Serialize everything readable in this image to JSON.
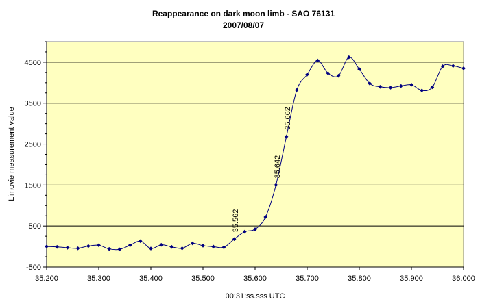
{
  "chart_data": {
    "type": "line",
    "title": "Reappearance on dark moon limb - SAO 76131",
    "subtitle": "2007/08/07",
    "xlabel": "00:31:ss.sss UTC",
    "ylabel": "Limovie measurement value",
    "xlim": [
      35.2,
      36.0
    ],
    "ylim": [
      -500,
      5000
    ],
    "x_ticks": [
      "35.200",
      "35.300",
      "35.400",
      "35.500",
      "35.600",
      "35.700",
      "35.800",
      "35.900",
      "36.000"
    ],
    "y_ticks": [
      "-500",
      "500",
      "1500",
      "2500",
      "3500",
      "4500"
    ],
    "gridlines_at": [
      500,
      1500,
      2500,
      3500,
      4500
    ],
    "grid": true,
    "plot_background": "#ffffc0",
    "series_color": "#000080",
    "series": [
      {
        "points": [
          [
            35.2,
            0
          ],
          [
            35.22,
            -10
          ],
          [
            35.24,
            -30
          ],
          [
            35.26,
            -45
          ],
          [
            35.28,
            10
          ],
          [
            35.3,
            30
          ],
          [
            35.32,
            -60
          ],
          [
            35.34,
            -70
          ],
          [
            35.36,
            30
          ],
          [
            35.38,
            130
          ],
          [
            35.4,
            -50
          ],
          [
            35.42,
            40
          ],
          [
            35.44,
            -10
          ],
          [
            35.46,
            -45
          ],
          [
            35.48,
            75
          ],
          [
            35.5,
            20
          ],
          [
            35.52,
            -5
          ],
          [
            35.54,
            -20
          ],
          [
            35.56,
            180
          ],
          [
            35.58,
            360
          ],
          [
            35.6,
            420
          ],
          [
            35.62,
            720
          ],
          [
            35.64,
            1500
          ],
          [
            35.66,
            2680
          ],
          [
            35.68,
            3820
          ],
          [
            35.7,
            4200
          ],
          [
            35.72,
            4540
          ],
          [
            35.74,
            4230
          ],
          [
            35.76,
            4170
          ],
          [
            35.78,
            4620
          ],
          [
            35.8,
            4330
          ],
          [
            35.82,
            3980
          ],
          [
            35.84,
            3900
          ],
          [
            35.86,
            3880
          ],
          [
            35.88,
            3920
          ],
          [
            35.9,
            3950
          ],
          [
            35.92,
            3810
          ],
          [
            35.94,
            3890
          ],
          [
            35.96,
            4400
          ],
          [
            35.98,
            4410
          ],
          [
            36.0,
            4350
          ]
        ]
      }
    ],
    "annotations": [
      {
        "text": "35.562",
        "x": 35.562,
        "y": 180
      },
      {
        "text": "35.642",
        "x": 35.642,
        "y": 1500
      },
      {
        "text": "35.662",
        "x": 35.662,
        "y": 2680
      }
    ]
  }
}
